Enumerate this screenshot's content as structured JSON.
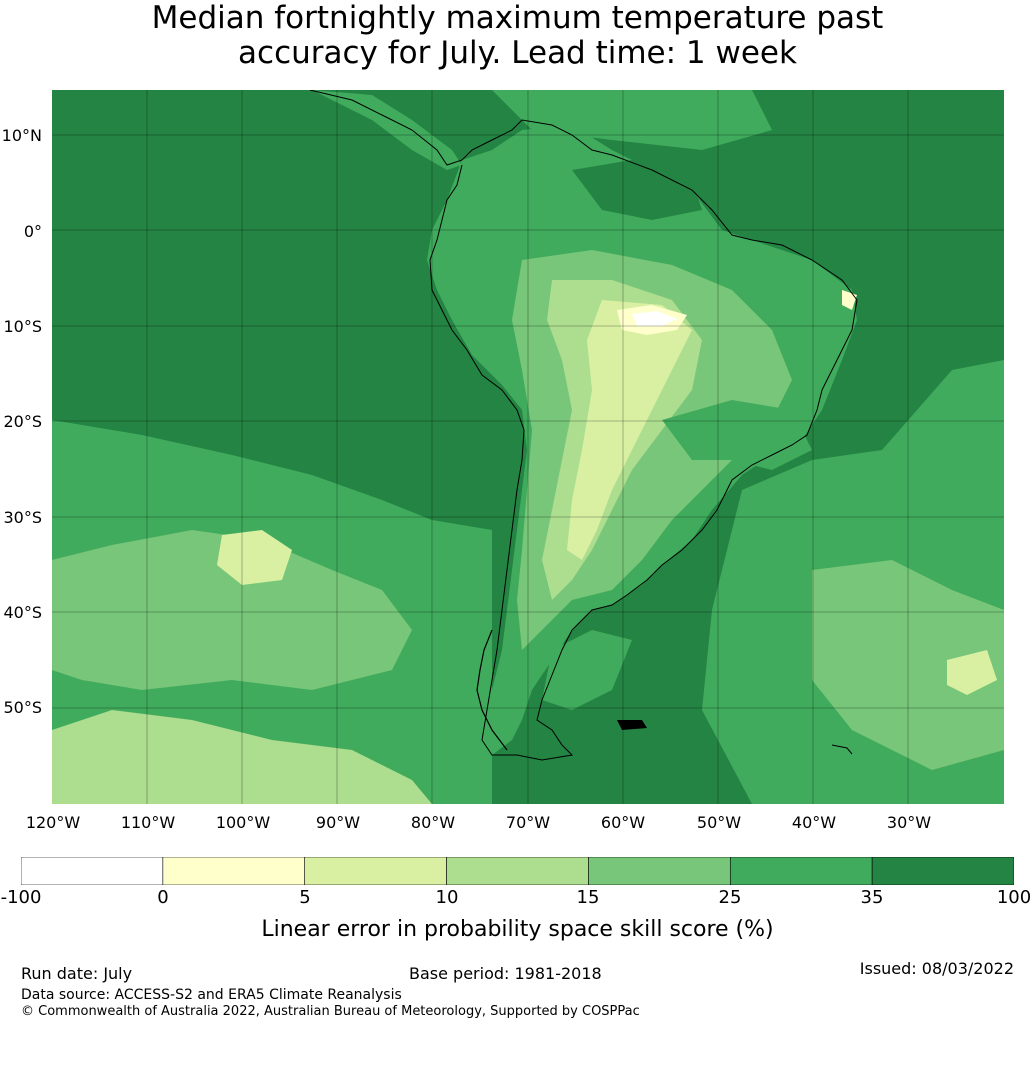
{
  "header": {
    "title_line1": "Median fortnightly maximum temperature past",
    "title_line2": "accuracy for July. Lead time: 1 week"
  },
  "map": {
    "lat_labels": [
      "10°N",
      "0°",
      "10°S",
      "20°S",
      "30°S",
      "40°S",
      "50°S"
    ],
    "lon_labels": [
      "120°W",
      "110°W",
      "100°W",
      "90°W",
      "80°W",
      "70°W",
      "60°W",
      "50°W",
      "40°W",
      "30°W"
    ],
    "ocean_color": "#238443",
    "land_base_color": "#41ab5d",
    "coastline_color": "#000000",
    "gridline_color": "#000000"
  },
  "colorbar": {
    "ticks": [
      "-100",
      "0",
      "5",
      "10",
      "15",
      "25",
      "35",
      "100"
    ],
    "colors": [
      "#ffffff",
      "#ffffcc",
      "#d9f0a3",
      "#addd8e",
      "#78c679",
      "#41ab5d",
      "#238443"
    ],
    "label": "Linear error in probability space skill score (%)"
  },
  "footer": {
    "run_date": "Run date: July",
    "base_period": "Base period: 1981-2018",
    "issued": "Issued: 08/03/2022",
    "data_source": "Data source: ACCESS-S2 and ERA5 Climate Reanalysis",
    "copyright": "© Commonwealth of Australia 2022, Australian Bureau of Meteorology, Supported by COSPPac"
  }
}
